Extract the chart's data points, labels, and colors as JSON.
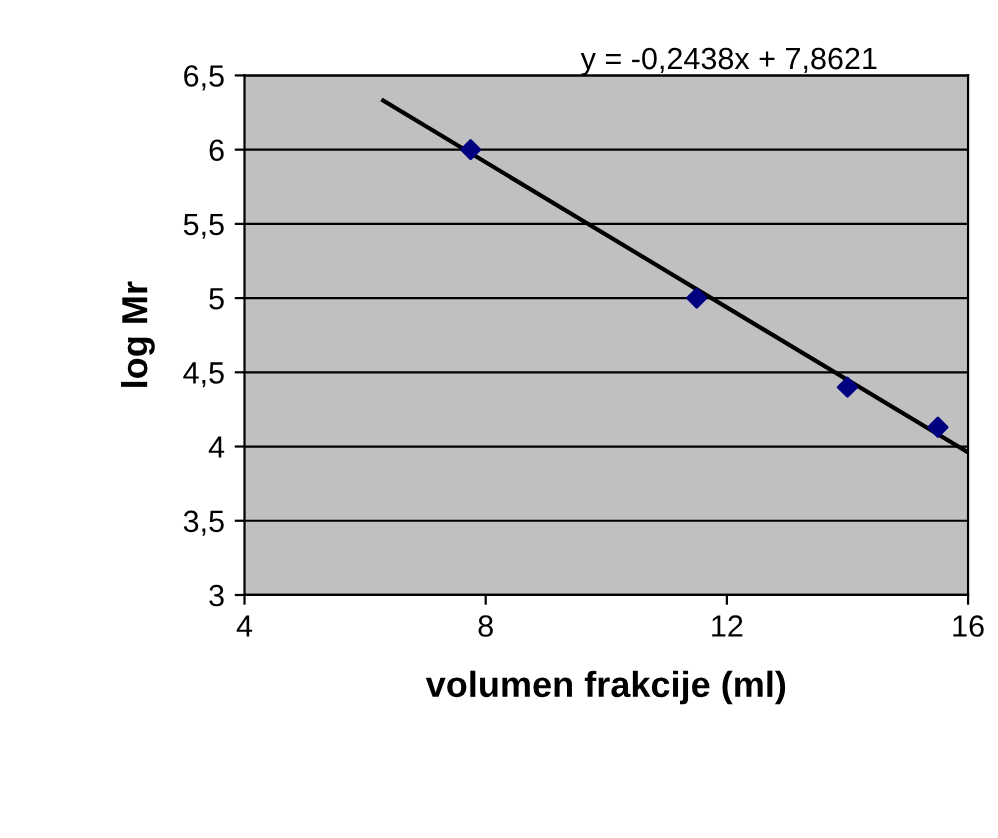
{
  "chart_data": {
    "type": "scatter",
    "xlabel": "volumen frakcije (ml)",
    "ylabel": "log Mr",
    "xlim": [
      4,
      16
    ],
    "xticks": [
      4,
      8,
      12,
      16
    ],
    "ylim": [
      3,
      6.5
    ],
    "yticks": [
      3,
      {
        "value": 3.5,
        "label": "3,5"
      },
      4,
      {
        "value": 4.5,
        "label": "4,5"
      },
      5,
      {
        "value": 5.5,
        "label": "5,5"
      },
      6,
      {
        "value": 6.5,
        "label": "6,5"
      }
    ],
    "grid": "y",
    "legend": false,
    "annotations": [
      "y = -0,2438x + 7,8621"
    ],
    "series": [
      {
        "color": "#000080",
        "marker": "diamond",
        "x": [
          7.75,
          11.5,
          14.0,
          15.5
        ],
        "values": [
          6.0,
          5.0,
          4.4,
          4.13
        ]
      },
      {
        "type": "line",
        "color": "#000000",
        "marker": "none",
        "x": [
          6.3,
          16
        ],
        "values": [
          6.33,
          3.96
        ]
      }
    ]
  }
}
